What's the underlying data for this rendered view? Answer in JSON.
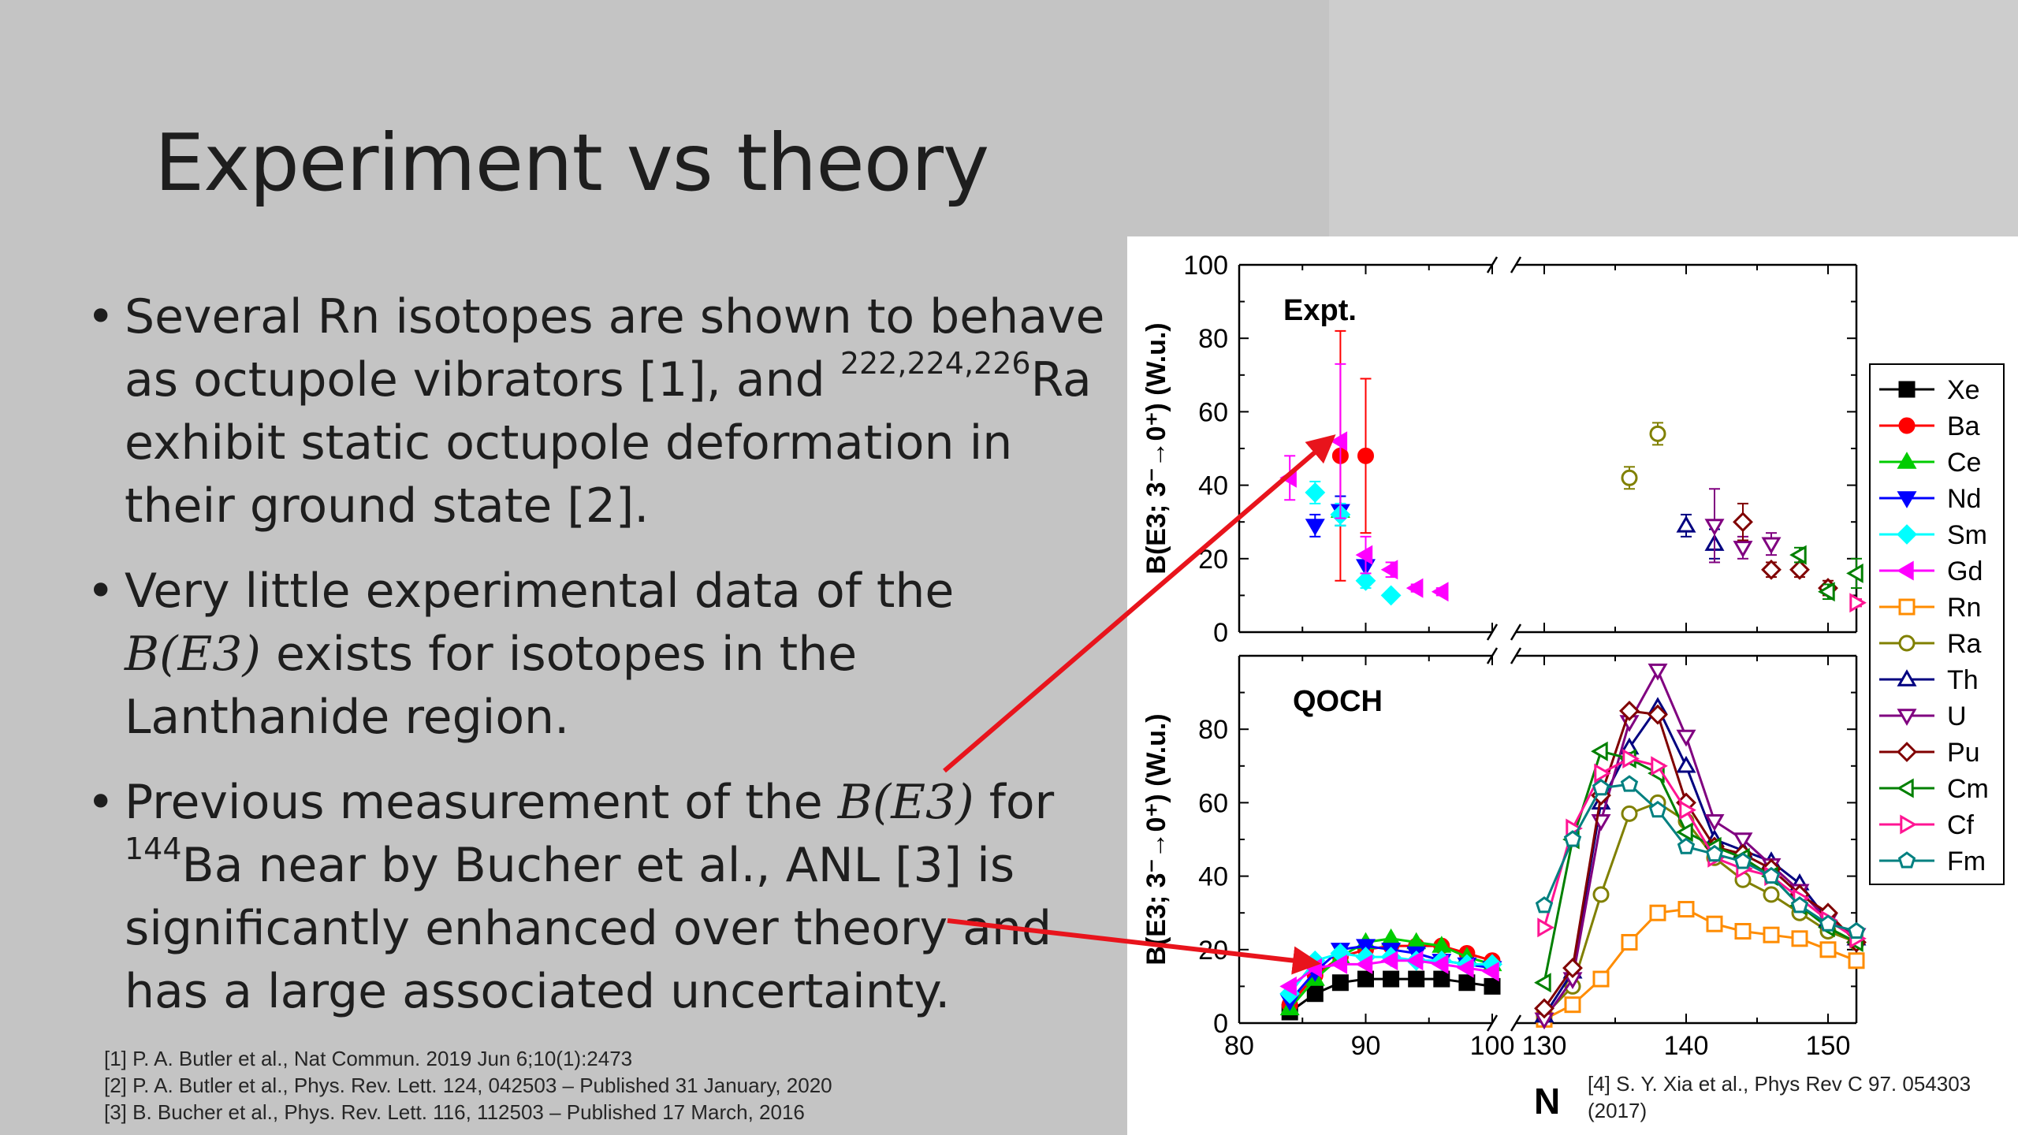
{
  "slide": {
    "title": "Experiment vs theory",
    "bullets": [
      {
        "lines": [
          {
            "text": "Several Rn isotopes are shown to behave"
          },
          {
            "pre": "as octupole vibrators [1], and ",
            "sup": "222,224,226",
            "post": "Ra"
          },
          {
            "text": "exhibit static octupole deformation in"
          },
          {
            "text": "their ground state [2]."
          }
        ]
      },
      {
        "lines": [
          {
            "text": "Very little experimental data of the"
          },
          {
            "math": "B(E3)",
            "post": " exists for isotopes in the"
          },
          {
            "text": "Lanthanide region."
          }
        ]
      },
      {
        "lines": [
          {
            "pre": "Previous measurement of the ",
            "math": "B(E3)",
            "post": " for"
          },
          {
            "sup": "144",
            "post": "Ba near by Bucher et al., ANL  [3] is"
          },
          {
            "text": "significantly enhanced over theory and"
          },
          {
            "text": "has a large associated uncertainty."
          }
        ]
      }
    ],
    "references": [
      "[1] P. A. Butler et al., Nat Commun. 2019 Jun 6;10(1):2473",
      "[2] P. A. Butler et al.,  Phys. Rev. Lett. 124, 042503 – Published 31 January, 2020",
      "[3] B. Bucher et al., Phys. Rev. Lett. 116, 112503 – Published 17 March, 2016"
    ],
    "figure_ref": [
      "[4] S. Y. Xia et al., Phys Rev C 97. 054303",
      "(2017)"
    ],
    "arrow_color": "#e8141c"
  },
  "chart_data": [
    {
      "type": "scatter",
      "title": "Expt.",
      "ylabel": "B(E3; 3⁻→0⁺) (W.u.)",
      "ylim": [
        0,
        100
      ],
      "yticks": [
        "0",
        "20",
        "40",
        "60",
        "80",
        "100"
      ],
      "xbreak": [
        100,
        130
      ],
      "series": [
        {
          "name": "Ba",
          "color": "#ff0000",
          "marker": "circle",
          "filled": true,
          "x": [
            88,
            90
          ],
          "y": [
            48,
            48
          ],
          "err": [
            34,
            21
          ]
        },
        {
          "name": "Ce",
          "color": "#00cc00",
          "marker": "triangle-up",
          "filled": true,
          "x": [
            88
          ],
          "y": [
            33
          ],
          "err": [
            4
          ]
        },
        {
          "name": "Nd",
          "color": "#0000ff",
          "marker": "triangle-down",
          "filled": true,
          "x": [
            86,
            88,
            90
          ],
          "y": [
            29,
            33,
            18
          ],
          "err": [
            3,
            4,
            3
          ]
        },
        {
          "name": "Sm",
          "color": "#00ffff",
          "marker": "diamond",
          "filled": true,
          "x": [
            86,
            88,
            90,
            92
          ],
          "y": [
            38,
            32,
            14,
            10
          ],
          "err": [
            3,
            3,
            2,
            1
          ]
        },
        {
          "name": "Gd",
          "color": "#ff00ff",
          "marker": "triangle-left",
          "filled": true,
          "x": [
            84,
            88,
            90,
            92,
            94,
            96
          ],
          "y": [
            42,
            52,
            21,
            17,
            12,
            11
          ],
          "err": [
            6,
            21,
            5,
            2,
            1,
            1
          ]
        },
        {
          "name": "Ra",
          "color": "#808000",
          "marker": "circle",
          "filled": false,
          "x": [
            136,
            138
          ],
          "y": [
            42,
            54
          ],
          "err": [
            3,
            3
          ]
        },
        {
          "name": "Th",
          "color": "#000080",
          "marker": "triangle-up",
          "filled": false,
          "x": [
            140,
            142
          ],
          "y": [
            29,
            24
          ],
          "err": [
            3,
            4
          ]
        },
        {
          "name": "U",
          "color": "#800080",
          "marker": "triangle-down",
          "filled": false,
          "x": [
            142,
            144,
            146
          ],
          "y": [
            29,
            23,
            24
          ],
          "err": [
            10,
            3,
            3
          ]
        },
        {
          "name": "Pu",
          "color": "#800000",
          "marker": "diamond",
          "filled": false,
          "x": [
            144,
            146,
            148,
            150
          ],
          "y": [
            30,
            17,
            17,
            12
          ],
          "err": [
            5,
            2,
            2,
            2
          ]
        },
        {
          "name": "Cm",
          "color": "#008000",
          "marker": "triangle-left",
          "filled": false,
          "x": [
            148,
            150,
            152
          ],
          "y": [
            21,
            11,
            16
          ],
          "err": [
            2,
            2,
            4
          ]
        },
        {
          "name": "Cf",
          "color": "#ff1493",
          "marker": "triangle-right",
          "filled": false,
          "x": [
            152
          ],
          "y": [
            8
          ],
          "err": [
            1
          ]
        }
      ]
    },
    {
      "type": "line",
      "title": "QOCH",
      "ylabel": "B(E3; 3⁻→0⁺) (W.u.)",
      "xlabel": "N",
      "ylim": [
        0,
        100
      ],
      "yticks": [
        "0",
        "20",
        "40",
        "60",
        "80"
      ],
      "xticks": [
        "80",
        "90",
        "100",
        "130",
        "140",
        "150"
      ],
      "xbreak": [
        100,
        130
      ],
      "series": [
        {
          "name": "Xe",
          "color": "#000000",
          "marker": "square",
          "filled": true,
          "x": [
            84,
            86,
            88,
            90,
            92,
            94,
            96,
            98,
            100
          ],
          "y": [
            3,
            8,
            11,
            12,
            12,
            12,
            12,
            11,
            10
          ]
        },
        {
          "name": "Ba",
          "color": "#ff0000",
          "marker": "circle",
          "filled": true,
          "x": [
            84,
            86,
            88,
            90,
            92,
            94,
            96,
            98,
            100
          ],
          "y": [
            5,
            13,
            18,
            20,
            21,
            21,
            21,
            19,
            17
          ]
        },
        {
          "name": "Ce",
          "color": "#00cc00",
          "marker": "triangle-up",
          "filled": true,
          "x": [
            84,
            86,
            88,
            90,
            92,
            94,
            96,
            98,
            100
          ],
          "y": [
            4,
            12,
            18,
            22,
            23,
            22,
            21,
            18,
            16
          ]
        },
        {
          "name": "Nd",
          "color": "#0000ff",
          "marker": "triangle-down",
          "filled": true,
          "x": [
            84,
            86,
            88,
            90,
            92,
            94,
            96,
            98,
            100
          ],
          "y": [
            6,
            14,
            20,
            21,
            20,
            19,
            17,
            16,
            15
          ]
        },
        {
          "name": "Sm",
          "color": "#00ffff",
          "marker": "diamond",
          "filled": true,
          "x": [
            84,
            86,
            88,
            90,
            92,
            94,
            96,
            98,
            100
          ],
          "y": [
            8,
            17,
            19,
            18,
            18,
            17,
            17,
            16,
            16
          ]
        },
        {
          "name": "Gd",
          "color": "#ff00ff",
          "marker": "triangle-left",
          "filled": true,
          "x": [
            84,
            86,
            88,
            90,
            92,
            94,
            96,
            98,
            100
          ],
          "y": [
            10,
            15,
            16,
            16,
            17,
            17,
            16,
            15,
            14
          ]
        },
        {
          "name": "Rn",
          "color": "#ff8c00",
          "marker": "square",
          "filled": false,
          "x": [
            130,
            132,
            134,
            136,
            138,
            140,
            142,
            144,
            146,
            148,
            150,
            152
          ],
          "y": [
            1,
            5,
            12,
            22,
            30,
            31,
            27,
            25,
            24,
            23,
            20,
            17
          ]
        },
        {
          "name": "Ra",
          "color": "#808000",
          "marker": "circle",
          "filled": false,
          "x": [
            130,
            132,
            134,
            136,
            138,
            140,
            142,
            144,
            146,
            148,
            150,
            152
          ],
          "y": [
            2,
            10,
            35,
            57,
            60,
            55,
            45,
            39,
            35,
            30,
            25,
            22
          ]
        },
        {
          "name": "Th",
          "color": "#000080",
          "marker": "triangle-up",
          "filled": false,
          "x": [
            130,
            132,
            134,
            136,
            138,
            140,
            142,
            144,
            146,
            148,
            150,
            152
          ],
          "y": [
            2,
            14,
            60,
            75,
            86,
            70,
            50,
            47,
            44,
            38,
            28,
            23
          ]
        },
        {
          "name": "U",
          "color": "#800080",
          "marker": "triangle-down",
          "filled": false,
          "x": [
            130,
            132,
            134,
            136,
            138,
            140,
            142,
            144,
            146,
            148,
            150,
            152
          ],
          "y": [
            1,
            12,
            55,
            82,
            96,
            78,
            55,
            50,
            43,
            36,
            28,
            24
          ]
        },
        {
          "name": "Pu",
          "color": "#800000",
          "marker": "diamond",
          "filled": false,
          "x": [
            130,
            132,
            134,
            136,
            138,
            140,
            142,
            144,
            146,
            148,
            150,
            152
          ],
          "y": [
            4,
            15,
            62,
            85,
            84,
            60,
            48,
            46,
            42,
            35,
            30,
            22
          ]
        },
        {
          "name": "Cm",
          "color": "#008000",
          "marker": "triangle-left",
          "filled": false,
          "x": [
            130,
            132,
            134,
            136,
            138,
            140,
            142,
            144,
            146,
            148,
            150,
            152
          ],
          "y": [
            11,
            50,
            74,
            72,
            68,
            52,
            48,
            45,
            40,
            32,
            26,
            22
          ]
        },
        {
          "name": "Cf",
          "color": "#ff1493",
          "marker": "triangle-right",
          "filled": false,
          "x": [
            130,
            132,
            134,
            136,
            138,
            140,
            142,
            144,
            146,
            148,
            150,
            152
          ],
          "y": [
            26,
            53,
            68,
            72,
            70,
            58,
            45,
            42,
            40,
            34,
            28,
            23
          ]
        },
        {
          "name": "Fm",
          "color": "#008080",
          "marker": "pentagon",
          "filled": false,
          "x": [
            130,
            132,
            134,
            136,
            138,
            140,
            142,
            144,
            146,
            148,
            150,
            152
          ],
          "y": [
            32,
            50,
            64,
            65,
            58,
            48,
            46,
            44,
            40,
            32,
            27,
            25
          ]
        }
      ]
    }
  ],
  "legend": {
    "position": "right",
    "entries": [
      {
        "name": "Xe",
        "color": "#000000",
        "marker": "square",
        "filled": true
      },
      {
        "name": "Ba",
        "color": "#ff0000",
        "marker": "circle",
        "filled": true
      },
      {
        "name": "Ce",
        "color": "#00cc00",
        "marker": "triangle-up",
        "filled": true
      },
      {
        "name": "Nd",
        "color": "#0000ff",
        "marker": "triangle-down",
        "filled": true
      },
      {
        "name": "Sm",
        "color": "#00ffff",
        "marker": "diamond",
        "filled": true
      },
      {
        "name": "Gd",
        "color": "#ff00ff",
        "marker": "triangle-left",
        "filled": true
      },
      {
        "name": "Rn",
        "color": "#ff8c00",
        "marker": "square",
        "filled": false
      },
      {
        "name": "Ra",
        "color": "#808000",
        "marker": "circle",
        "filled": false
      },
      {
        "name": "Th",
        "color": "#000080",
        "marker": "triangle-up",
        "filled": false
      },
      {
        "name": "U",
        "color": "#800080",
        "marker": "triangle-down",
        "filled": false
      },
      {
        "name": "Pu",
        "color": "#800000",
        "marker": "diamond",
        "filled": false
      },
      {
        "name": "Cm",
        "color": "#008000",
        "marker": "triangle-left",
        "filled": false
      },
      {
        "name": "Cf",
        "color": "#ff1493",
        "marker": "triangle-right",
        "filled": false
      },
      {
        "name": "Fm",
        "color": "#008080",
        "marker": "pentagon",
        "filled": false
      }
    ]
  }
}
